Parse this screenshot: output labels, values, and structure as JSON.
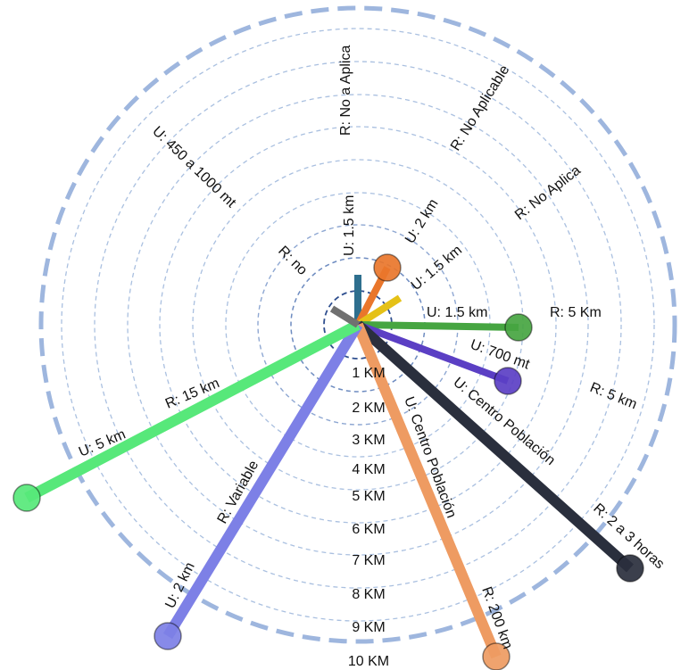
{
  "diagram": {
    "ring_labels": [
      "1 KM",
      "2 KM",
      "3 KM",
      "4 KM",
      "5 KM",
      "6 KM",
      "7 KM",
      "8 KM",
      "9 KM",
      "10 KM"
    ],
    "spokes": [
      {
        "id": "teal",
        "color": "#2e6f8e",
        "dot": false
      },
      {
        "id": "orange",
        "color": "#e9762b",
        "dot": true
      },
      {
        "id": "yellow",
        "color": "#e5c117",
        "dot": false
      },
      {
        "id": "green",
        "color": "#46a541",
        "dot": true
      },
      {
        "id": "indigo",
        "color": "#5b3fc4",
        "dot": true
      },
      {
        "id": "navy",
        "color": "#2a2f3d",
        "dot": true
      },
      {
        "id": "peach",
        "color": "#ee9b62",
        "dot": true
      },
      {
        "id": "lavender",
        "color": "#7d80e6",
        "dot": true
      },
      {
        "id": "mint",
        "color": "#57e87a",
        "dot": true
      },
      {
        "id": "gray",
        "color": "#707070",
        "dot": false
      }
    ],
    "labels": {
      "no_aplica_top": "R: No a Aplica",
      "no_aplicable": "R: No Aplicable",
      "no_aplica": "R: No Aplica",
      "u_450": "U: 450 a 1000 mt",
      "u_15_vertical": "U: 1.5 km",
      "u_2": "U: 2 km",
      "r_no": "R: no",
      "u_15_diag": "U: 1.5 km",
      "u_15_horiz": "U: 1.5 km",
      "r_5km_upper": "R: 5 Km",
      "u_700": "U: 700 mt",
      "r_5km_lower": "R: 5 km",
      "u_centro_right": "U: Centro Población",
      "r_2a3": "R: 2 a 3 horas",
      "u_centro_mid": "U: Centro Población",
      "r_200": "R: 200 km",
      "r_15": "R: 15 km",
      "u_5": "U: 5 km",
      "r_variable": "R: Variable",
      "u_2_lower": "U: 2 km"
    }
  }
}
